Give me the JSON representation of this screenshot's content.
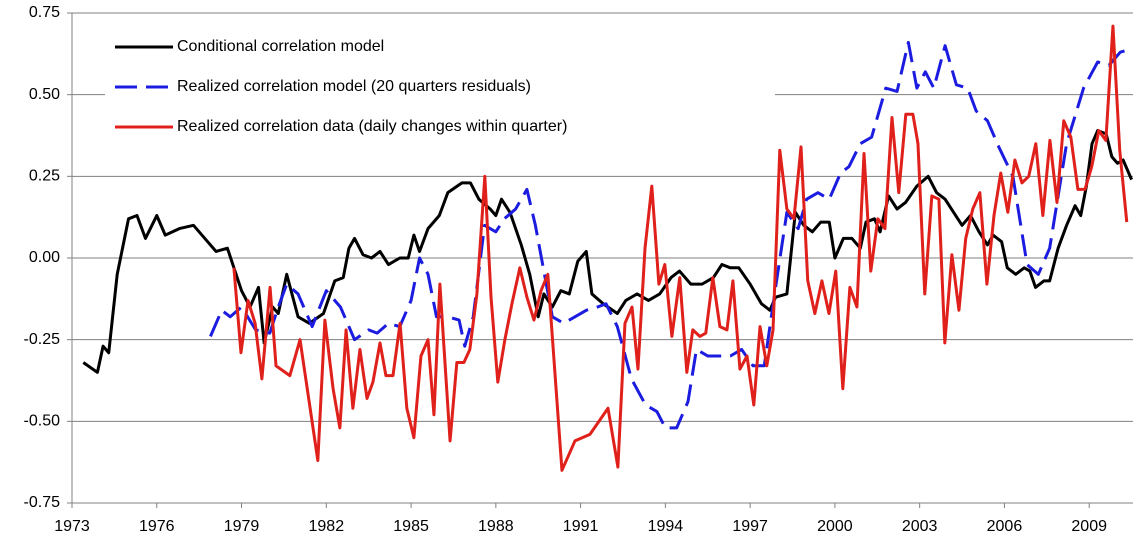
{
  "chart_data": {
    "type": "line",
    "xlim": [
      1973,
      2010.55
    ],
    "xticks": [
      1973,
      1976,
      1979,
      1982,
      1985,
      1988,
      1991,
      1994,
      1997,
      2000,
      2003,
      2006,
      2009
    ],
    "ylim": [
      -0.75,
      0.75
    ],
    "yticks": [
      -0.75,
      {
        "value": -0.5,
        "label": "-0.50"
      },
      -0.25,
      {
        "value": 0,
        "label": "0.00"
      },
      0.25,
      {
        "value": 0.5,
        "label": "0.50"
      },
      0.75
    ],
    "grid": true,
    "legend": "upper left",
    "series": [
      {
        "name": "Conditional correlation model",
        "color": "#000000",
        "dash": "solid",
        "x": [
          1973.4,
          1973.9,
          1974.1,
          1974.3,
          1974.6,
          1975.0,
          1975.3,
          1975.6,
          1976.0,
          1976.3,
          1976.8,
          1977.3,
          1977.8,
          1978.1,
          1978.5,
          1979.0,
          1979.3,
          1979.6,
          1979.8,
          1980.1,
          1980.3,
          1980.6,
          1981.0,
          1981.4,
          1981.9,
          1982.3,
          1982.6,
          1982.8,
          1983.0,
          1983.3,
          1983.6,
          1983.9,
          1984.2,
          1984.6,
          1984.9,
          1985.1,
          1985.3,
          1985.6,
          1986.0,
          1986.3,
          1986.8,
          1987.1,
          1987.4,
          1987.8,
          1988.0,
          1988.2,
          1988.5,
          1988.9,
          1989.2,
          1989.5,
          1989.7,
          1990.0,
          1990.3,
          1990.6,
          1990.9,
          1991.2,
          1991.4,
          1991.8,
          1992.3,
          1992.6,
          1993.0,
          1993.4,
          1993.8,
          1994.2,
          1994.5,
          1994.9,
          1995.3,
          1995.7,
          1996.0,
          1996.3,
          1996.6,
          1997.0,
          1997.4,
          1997.7,
          1997.9,
          1998.3,
          1998.6,
          1998.9,
          1999.2,
          1999.5,
          1999.8,
          2000.0,
          2000.3,
          2000.6,
          2000.9,
          2001.1,
          2001.4,
          2001.6,
          2001.9,
          2002.2,
          2002.5,
          2002.9,
          2003.3,
          2003.6,
          2003.9,
          2004.2,
          2004.5,
          2004.8,
          2005.1,
          2005.4,
          2005.6,
          2005.9,
          2006.1,
          2006.4,
          2006.7,
          2006.9,
          2007.1,
          2007.4,
          2007.6,
          2007.9,
          2008.2,
          2008.5,
          2008.7,
          2008.9,
          2009.1,
          2009.3,
          2009.6,
          2009.8,
          2010.0,
          2010.2,
          2010.5
        ],
        "values": [
          -0.32,
          -0.35,
          -0.27,
          -0.29,
          -0.05,
          0.12,
          0.13,
          0.06,
          0.13,
          0.07,
          0.09,
          0.1,
          0.05,
          0.02,
          0.03,
          -0.1,
          -0.15,
          -0.09,
          -0.26,
          -0.15,
          -0.17,
          -0.05,
          -0.18,
          -0.2,
          -0.17,
          -0.07,
          -0.06,
          0.03,
          0.06,
          0.01,
          0.0,
          0.02,
          -0.02,
          0.0,
          0.0,
          0.07,
          0.02,
          0.09,
          0.13,
          0.2,
          0.23,
          0.23,
          0.18,
          0.15,
          0.13,
          0.18,
          0.14,
          0.04,
          -0.05,
          -0.18,
          -0.11,
          -0.15,
          -0.1,
          -0.11,
          -0.01,
          0.02,
          -0.11,
          -0.14,
          -0.17,
          -0.13,
          -0.11,
          -0.13,
          -0.11,
          -0.06,
          -0.04,
          -0.08,
          -0.08,
          -0.06,
          -0.02,
          -0.03,
          -0.03,
          -0.08,
          -0.14,
          -0.16,
          -0.12,
          -0.11,
          0.14,
          0.1,
          0.08,
          0.11,
          0.11,
          0.0,
          0.06,
          0.06,
          0.03,
          0.11,
          0.12,
          0.08,
          0.19,
          0.15,
          0.17,
          0.22,
          0.25,
          0.2,
          0.18,
          0.14,
          0.1,
          0.13,
          0.08,
          0.04,
          0.07,
          0.05,
          -0.03,
          -0.05,
          -0.03,
          -0.04,
          -0.09,
          -0.07,
          -0.07,
          0.03,
          0.1,
          0.16,
          0.13,
          0.22,
          0.35,
          0.39,
          0.38,
          0.31,
          0.29,
          0.3,
          0.24
        ]
      },
      {
        "name": "Realized correlation model (20 quarters residuals)",
        "color": "#1c1ce0",
        "dash": "dashed",
        "x": [
          1977.9,
          1978.3,
          1978.6,
          1979.0,
          1979.5,
          1980.0,
          1980.3,
          1980.6,
          1981.0,
          1981.5,
          1982.0,
          1982.5,
          1983.0,
          1983.5,
          1983.8,
          1984.2,
          1984.6,
          1985.0,
          1985.3,
          1985.6,
          1985.9,
          1986.3,
          1986.7,
          1986.9,
          1987.2,
          1987.6,
          1988.0,
          1988.3,
          1988.7,
          1989.1,
          1989.4,
          1989.7,
          1990.0,
          1990.4,
          1990.8,
          1991.2,
          1991.6,
          1991.9,
          1992.3,
          1992.8,
          1993.3,
          1993.7,
          1994.0,
          1994.4,
          1994.8,
          1995.1,
          1995.5,
          1995.9,
          1996.3,
          1996.7,
          1997.1,
          1997.5,
          1997.9,
          1998.3,
          1998.7,
          1999.0,
          1999.4,
          1999.8,
          2000.2,
          2000.5,
          2000.9,
          2001.3,
          2001.8,
          2002.2,
          2002.6,
          2002.9,
          2003.2,
          2003.5,
          2003.9,
          2004.3,
          2004.7,
          2005.0,
          2005.4,
          2005.8,
          2006.3,
          2006.8,
          2007.2,
          2007.6,
          2008.2,
          2008.8,
          2009.3,
          2009.7,
          2010.1,
          2010.5
        ],
        "values": [
          -0.24,
          -0.16,
          -0.18,
          -0.15,
          -0.22,
          -0.23,
          -0.15,
          -0.08,
          -0.11,
          -0.21,
          -0.1,
          -0.15,
          -0.25,
          -0.22,
          -0.23,
          -0.2,
          -0.21,
          -0.13,
          0.0,
          -0.05,
          -0.18,
          -0.18,
          -0.19,
          -0.27,
          -0.18,
          0.1,
          0.08,
          0.12,
          0.15,
          0.21,
          0.1,
          -0.04,
          -0.18,
          -0.2,
          -0.18,
          -0.16,
          -0.15,
          -0.14,
          -0.21,
          -0.37,
          -0.45,
          -0.47,
          -0.52,
          -0.52,
          -0.44,
          -0.28,
          -0.3,
          -0.3,
          -0.3,
          -0.28,
          -0.33,
          -0.33,
          -0.09,
          0.14,
          0.09,
          0.18,
          0.2,
          0.18,
          0.26,
          0.28,
          0.35,
          0.37,
          0.52,
          0.51,
          0.66,
          0.52,
          0.57,
          0.52,
          0.65,
          0.53,
          0.52,
          0.45,
          0.42,
          0.34,
          0.25,
          -0.02,
          -0.05,
          0.03,
          0.35,
          0.52,
          0.6,
          0.59,
          0.63,
          0.64
        ]
      },
      {
        "name": "Realized correlation data (daily changes within quarter)",
        "color": "#e0201b",
        "dash": "solid",
        "x": [
          1978.73,
          1978.98,
          1979.23,
          1979.48,
          1979.72,
          1980.01,
          1980.22,
          1980.71,
          1981.07,
          1981.7,
          1981.95,
          1982.24,
          1982.48,
          1982.7,
          1982.94,
          1983.19,
          1983.44,
          1983.65,
          1983.9,
          1984.11,
          1984.36,
          1984.61,
          1984.85,
          1985.1,
          1985.35,
          1985.6,
          1985.81,
          1986.02,
          1986.38,
          1986.62,
          1986.87,
          1987.08,
          1987.33,
          1987.61,
          1987.83,
          1988.07,
          1988.32,
          1988.57,
          1988.85,
          1989.1,
          1989.35,
          1989.6,
          1989.84,
          1990.34,
          1990.8,
          1991.33,
          1991.97,
          1992.32,
          1992.57,
          1992.82,
          1993.03,
          1993.28,
          1993.52,
          1993.77,
          1993.98,
          1994.23,
          1994.51,
          1994.76,
          1994.97,
          1995.22,
          1995.43,
          1995.68,
          1995.93,
          1996.18,
          1996.39,
          1996.64,
          1996.89,
          1997.13,
          1997.35,
          1997.59,
          1997.81,
          1998.05,
          1998.3,
          1998.55,
          1998.8,
          1999.04,
          1999.29,
          1999.54,
          1999.79,
          2000.03,
          2000.28,
          2000.53,
          2000.78,
          2001.03,
          2001.27,
          2001.52,
          2001.77,
          2002.02,
          2002.26,
          2002.51,
          2002.76,
          2002.94,
          2003.18,
          2003.43,
          2003.68,
          2003.89,
          2004.14,
          2004.39,
          2004.63,
          2004.88,
          2005.13,
          2005.38,
          2005.63,
          2005.87,
          2006.12,
          2006.37,
          2006.62,
          2006.86,
          2007.11,
          2007.36,
          2007.61,
          2007.86,
          2008.1,
          2008.35,
          2008.6,
          2008.85,
          2009.09,
          2009.34,
          2009.59,
          2009.84,
          2010.08,
          2010.33
        ],
        "values": [
          -0.03,
          -0.29,
          -0.13,
          -0.2,
          -0.37,
          -0.09,
          -0.33,
          -0.36,
          -0.25,
          -0.62,
          -0.19,
          -0.4,
          -0.52,
          -0.22,
          -0.46,
          -0.28,
          -0.43,
          -0.38,
          -0.26,
          -0.36,
          -0.36,
          -0.2,
          -0.46,
          -0.55,
          -0.3,
          -0.25,
          -0.48,
          -0.08,
          -0.56,
          -0.32,
          -0.32,
          -0.28,
          -0.11,
          0.25,
          -0.12,
          -0.38,
          -0.25,
          -0.14,
          -0.03,
          -0.12,
          -0.19,
          -0.1,
          -0.05,
          -0.65,
          -0.56,
          -0.54,
          -0.46,
          -0.64,
          -0.2,
          -0.15,
          -0.34,
          0.03,
          0.22,
          -0.08,
          -0.02,
          -0.24,
          -0.06,
          -0.35,
          -0.22,
          -0.24,
          -0.23,
          -0.06,
          -0.21,
          -0.22,
          -0.07,
          -0.34,
          -0.3,
          -0.45,
          -0.21,
          -0.33,
          -0.22,
          0.33,
          0.15,
          0.12,
          0.34,
          -0.07,
          -0.17,
          -0.07,
          -0.17,
          -0.04,
          -0.4,
          -0.09,
          -0.15,
          0.32,
          -0.04,
          0.12,
          0.09,
          0.43,
          0.2,
          0.44,
          0.44,
          0.35,
          -0.11,
          0.19,
          0.18,
          -0.26,
          0.01,
          -0.16,
          0.06,
          0.15,
          0.2,
          -0.08,
          0.13,
          0.26,
          0.14,
          0.3,
          0.23,
          0.25,
          0.35,
          0.13,
          0.36,
          0.17,
          0.42,
          0.37,
          0.21,
          0.21,
          0.28,
          0.39,
          0.36,
          0.71,
          0.33,
          0.11
        ]
      }
    ]
  }
}
